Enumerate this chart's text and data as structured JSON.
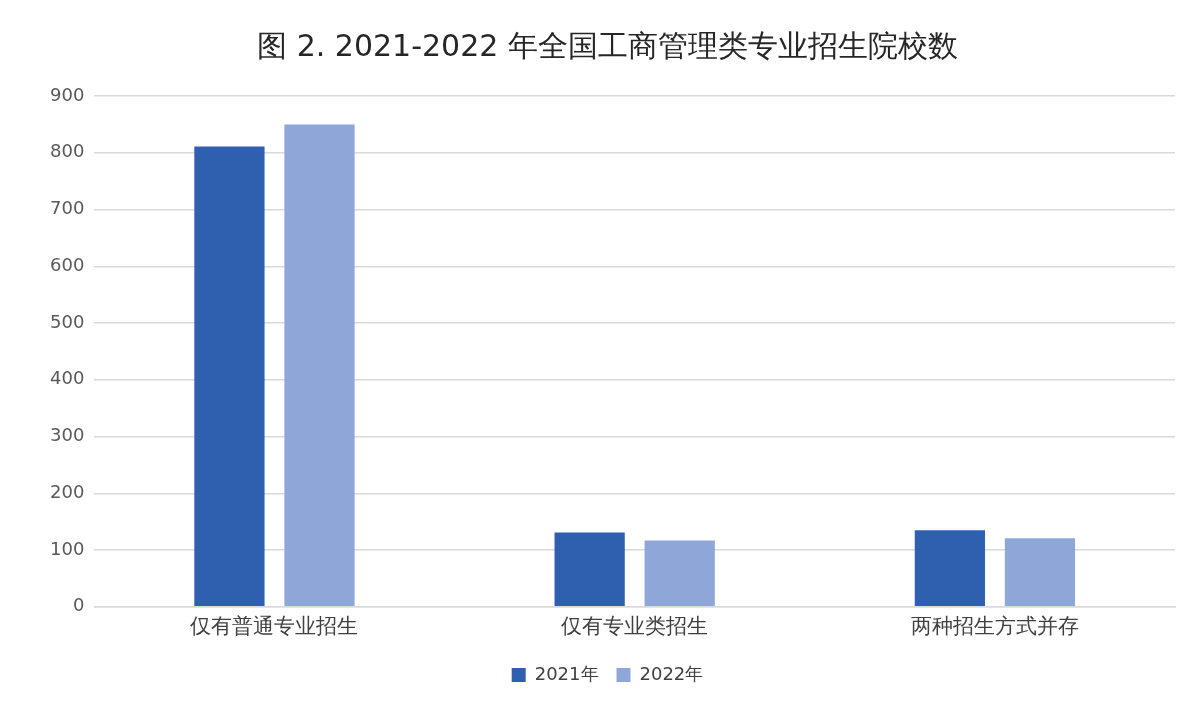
{
  "chart_data": {
    "type": "bar",
    "title": "图 2. 2021-2022 年全国工商管理类专业招生院校数",
    "categories": [
      "仅有普通专业招生",
      "仅有专业类招生",
      "两种招生方式并存"
    ],
    "series": [
      {
        "name": "2021年",
        "color": "#2f5faf",
        "values": [
          811,
          131,
          135
        ]
      },
      {
        "name": "2022年",
        "color": "#8ea7d8",
        "values": [
          850,
          117,
          121
        ]
      }
    ],
    "ylim": [
      0,
      900
    ],
    "yticks": [
      0,
      100,
      200,
      300,
      400,
      500,
      600,
      700,
      800,
      900
    ],
    "grid": "y",
    "legend": "bottom"
  }
}
